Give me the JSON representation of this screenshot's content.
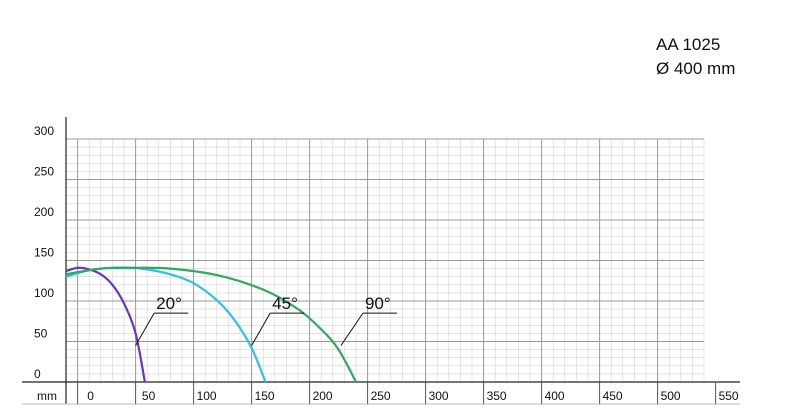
{
  "product": {
    "model": "AA 1025",
    "diameter": "Ø 400 mm"
  },
  "chart_data": {
    "type": "line",
    "x_unit": "mm",
    "x_ticks": [
      0,
      50,
      100,
      150,
      200,
      250,
      300,
      350,
      400,
      450,
      500,
      550
    ],
    "y_ticks": [
      0,
      50,
      100,
      150,
      200,
      250,
      300
    ],
    "xlim": [
      -10,
      540
    ],
    "ylim": [
      0,
      300
    ],
    "grid": true,
    "series": [
      {
        "name": "20°",
        "color": "#6a35b8",
        "points": [
          [
            -10,
            137
          ],
          [
            0,
            141
          ],
          [
            10,
            139
          ],
          [
            20,
            133
          ],
          [
            30,
            120
          ],
          [
            40,
            97
          ],
          [
            50,
            60
          ],
          [
            58,
            0
          ]
        ]
      },
      {
        "name": "45°",
        "color": "#2ec0ea",
        "points": [
          [
            -10,
            130
          ],
          [
            10,
            138
          ],
          [
            30,
            141
          ],
          [
            55,
            140
          ],
          [
            80,
            133
          ],
          [
            100,
            122
          ],
          [
            120,
            101
          ],
          [
            135,
            77
          ],
          [
            150,
            42
          ],
          [
            162,
            0
          ]
        ]
      },
      {
        "name": "90°",
        "color": "#35a562",
        "points": [
          [
            -10,
            133
          ],
          [
            20,
            140
          ],
          [
            50,
            141
          ],
          [
            80,
            140
          ],
          [
            120,
            132
          ],
          [
            160,
            114
          ],
          [
            190,
            90
          ],
          [
            210,
            65
          ],
          [
            225,
            40
          ],
          [
            240,
            0
          ]
        ]
      }
    ]
  }
}
